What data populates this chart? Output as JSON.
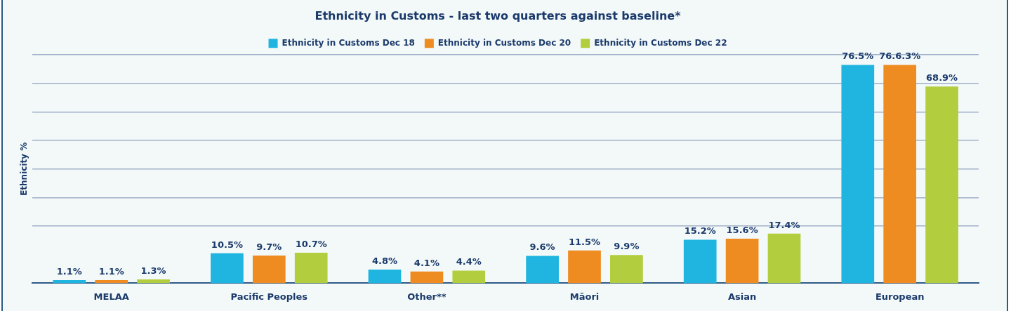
{
  "chart_data": {
    "type": "bar",
    "title": "Ethnicity in Customs - last two quarters against baseline*",
    "ylabel": "Ethnicity %",
    "categories": [
      "MELAA",
      "Pacific Peoples",
      "Other**",
      "Māori",
      "Asian",
      "European"
    ],
    "series": [
      {
        "name": "Ethnicity in Customs Dec 18",
        "color": "#1fb5e0",
        "values": [
          1.1,
          10.5,
          4.8,
          9.6,
          15.2,
          76.5
        ],
        "value_labels": [
          "1.1%",
          "10.5%",
          "4.8%",
          "9.6%",
          "15.2%",
          "76.5%"
        ]
      },
      {
        "name": "Ethnicity in Customs Dec 20",
        "color": "#ee8c22",
        "values": [
          1.1,
          9.7,
          4.1,
          11.5,
          15.6,
          76.5
        ],
        "value_labels": [
          "1.1%",
          "9.7%",
          "4.1%",
          "11.5%",
          "15.6%",
          "76.6.3%"
        ]
      },
      {
        "name": "Ethnicity in Customs Dec 22",
        "color": "#b2cd3e",
        "values": [
          1.3,
          10.7,
          4.4,
          9.9,
          17.4,
          68.9
        ],
        "value_labels": [
          "1.3%",
          "10.7%",
          "4.4%",
          "9.9%",
          "17.4%",
          "68.9%"
        ]
      }
    ],
    "ylim": [
      0,
      80
    ],
    "yticks": [
      {
        "value": 20,
        "label": null
      },
      {
        "value": 30,
        "label": null
      },
      {
        "value": 40,
        "label": null
      },
      {
        "value": 50,
        "label": null
      },
      {
        "value": 60,
        "label": null
      },
      {
        "value": 70,
        "label": null
      },
      {
        "value": 80,
        "label": null
      }
    ],
    "grid": "y",
    "legend": "top",
    "tick_labels": "x"
  }
}
